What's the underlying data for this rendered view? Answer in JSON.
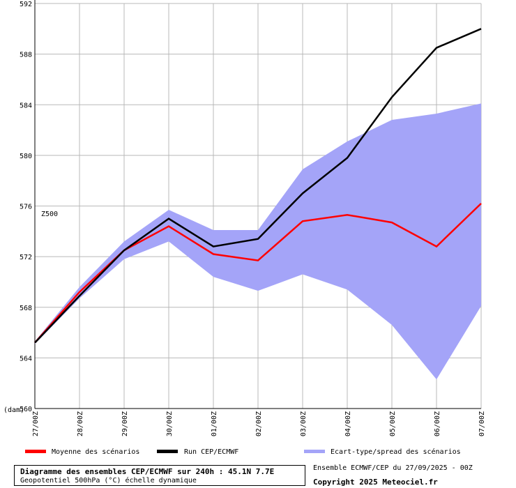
{
  "chart_data": {
    "type": "line",
    "series_label": "Z500",
    "unit_label": "(dam)",
    "ylim": [
      560,
      592
    ],
    "yticks": [
      560,
      564,
      568,
      572,
      576,
      580,
      584,
      588,
      592
    ],
    "categories": [
      "27/00Z",
      "28/00Z",
      "29/00Z",
      "30/00Z",
      "01/00Z",
      "02/00Z",
      "03/00Z",
      "04/00Z",
      "05/00Z",
      "06/00Z",
      "07/00Z"
    ],
    "grid": true,
    "series": [
      {
        "name": "Moyenne des scénarios",
        "color": "#ff0000",
        "values": [
          565.2,
          569.2,
          572.5,
          574.4,
          572.2,
          571.7,
          574.8,
          575.3,
          574.7,
          572.8,
          576.2
        ]
      },
      {
        "name": "Run CEP/ECMWF",
        "color": "#000000",
        "values": [
          565.2,
          568.9,
          572.5,
          575.0,
          572.8,
          573.4,
          577.0,
          579.8,
          584.6,
          588.5,
          590.0
        ]
      }
    ],
    "spread": {
      "name": "Ecart-type/spread des scénarios",
      "color": "#a4a4f8",
      "upper": [
        565.3,
        569.6,
        573.2,
        575.7,
        574.1,
        574.1,
        578.9,
        581.1,
        582.8,
        583.3,
        584.1
      ],
      "lower": [
        565.1,
        568.7,
        571.8,
        573.2,
        570.4,
        569.3,
        570.6,
        569.4,
        566.6,
        562.3,
        568.1
      ]
    }
  },
  "footer": {
    "title": "Diagramme des ensembles CEP/ECMWF sur 240h : 45.1N 7.7E",
    "subtitle": "Geopotentiel 500hPa (°C) échelle dynamique",
    "run_info": "Ensemble ECMWF/CEP du 27/09/2025 - 00Z",
    "copyright": "Copyright 2025 Meteociel.fr"
  }
}
